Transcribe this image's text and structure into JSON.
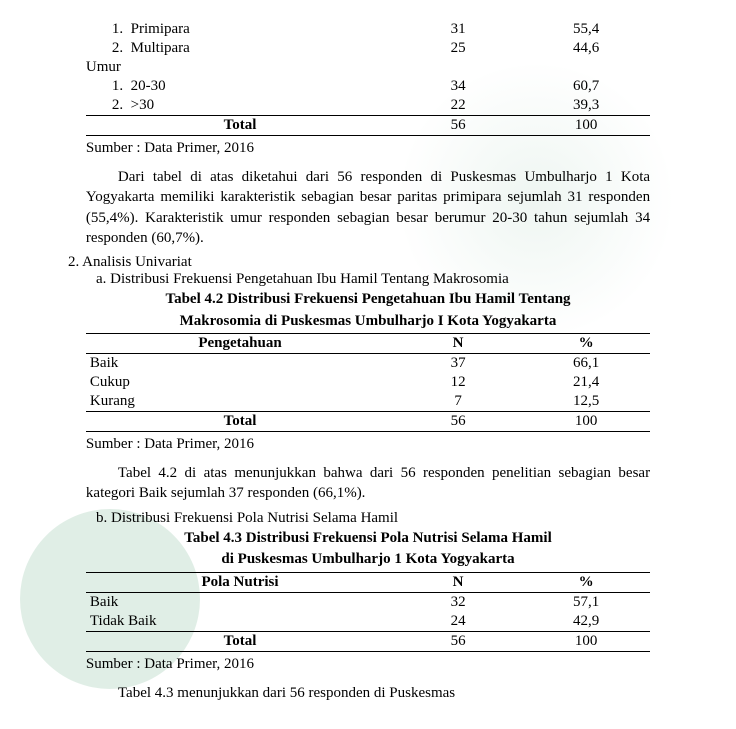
{
  "table41_partial": {
    "groups": [
      {
        "group_label": "",
        "rows": [
          {
            "idx": "1.",
            "label": "Primipara",
            "n": "31",
            "pct": "55,4"
          },
          {
            "idx": "2.",
            "label": "Multipara",
            "n": "25",
            "pct": "44,6"
          }
        ]
      },
      {
        "group_label": "Umur",
        "rows": [
          {
            "idx": "1.",
            "label": "20-30",
            "n": "34",
            "pct": "60,7"
          },
          {
            "idx": "2.",
            "label": ">30",
            "n": "22",
            "pct": "39,3"
          }
        ]
      }
    ],
    "total": {
      "label": "Total",
      "n": "56",
      "pct": "100"
    },
    "source": "Sumber : Data Primer, 2016"
  },
  "para41": "Dari tabel di atas diketahui dari 56 responden di Puskesmas Umbulharjo 1 Kota Yogyakarta memiliki karakteristik sebagian besar paritas primipara sejumlah 31 responden (55,4%). Karakteristik umur responden sebagian besar berumur 20-30 tahun  sejumlah 34 responden (60,7%).",
  "list2": "2.   Analisis Univariat",
  "list2a": "a.   Distribusi Frekuensi Pengetahuan Ibu Hamil Tentang Makrosomia",
  "table42": {
    "title_l1": "Tabel 4.2 Distribusi Frekuensi Pengetahuan Ibu Hamil Tentang",
    "title_l2": "Makrosomia di Puskesmas Umbulharjo I Kota Yogyakarta",
    "head": {
      "c1": "Pengetahuan",
      "c2": "N",
      "c3": "%"
    },
    "rows": [
      {
        "label": "Baik",
        "n": "37",
        "pct": "66,1"
      },
      {
        "label": "Cukup",
        "n": "12",
        "pct": "21,4"
      },
      {
        "label": "Kurang",
        "n": "7",
        "pct": "12,5"
      }
    ],
    "total": {
      "label": "Total",
      "n": "56",
      "pct": "100"
    },
    "source": "Sumber     :  Data Primer, 2016"
  },
  "para42": "Tabel 4.2 di atas menunjukkan bahwa dari 56 responden penelitian sebagian besar kategori Baik sejumlah 37 responden (66,1%).",
  "list2b": "b.   Distribusi Frekuensi Pola Nutrisi Selama Hamil",
  "table43": {
    "title_l1": "Tabel 4.3 Distribusi Frekuensi Pola Nutrisi Selama Hamil",
    "title_l2": "di Puskesmas Umbulharjo 1 Kota Yogyakarta",
    "head": {
      "c1": "Pola Nutrisi",
      "c2": "N",
      "c3": "%"
    },
    "rows": [
      {
        "label": "Baik",
        "n": "32",
        "pct": "57,1"
      },
      {
        "label": "Tidak Baik",
        "n": "24",
        "pct": "42,9"
      }
    ],
    "total": {
      "label": "Total",
      "n": "56",
      "pct": "100"
    },
    "source": "Sumber     :  Data Primer, 2016"
  },
  "para43_cut": "Tabel 4.3 menunjukkan dari 56 responden di Puskesmas"
}
